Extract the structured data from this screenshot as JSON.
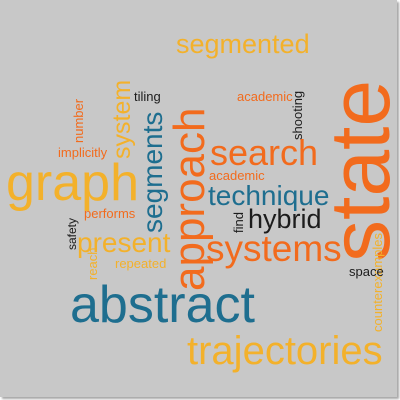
{
  "colors": {
    "background": "#c8c8c8",
    "orange": "#f26b1d",
    "amber": "#f3b12b",
    "teal": "#1e6e8f",
    "dark": "#1c1c1c"
  },
  "words": {
    "state": "state",
    "approach": "approach",
    "abstract": "abstract",
    "graph": "graph",
    "trajectories": "trajectories",
    "systems": "systems",
    "search": "search",
    "segmented": "segmented",
    "technique": "technique",
    "hybrid": "hybrid",
    "present": "present",
    "segments": "segments",
    "system": "system",
    "counterexamples": "counterexamples",
    "tiling": "tiling",
    "academic": "academic",
    "shooting": "shooting",
    "number": "number",
    "implicitly": "implicitly",
    "performs": "performs",
    "safety": "safety",
    "reach": "reach",
    "repeated": "repeated",
    "find": "find",
    "space": "space"
  }
}
